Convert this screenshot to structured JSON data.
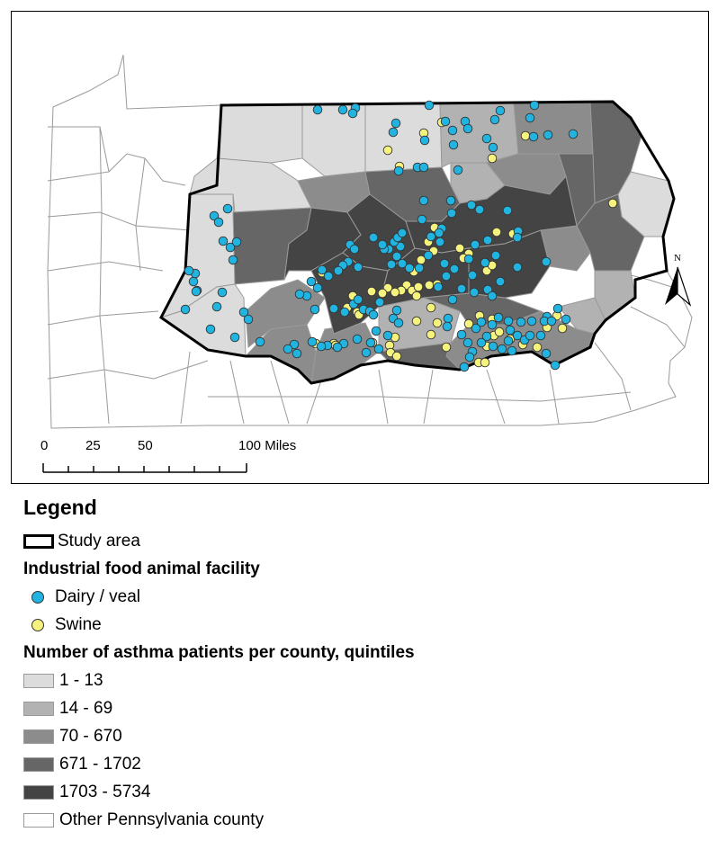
{
  "scale_bar": {
    "labels": [
      "0",
      "25",
      "50",
      "100 Miles"
    ],
    "unit": "Miles"
  },
  "north_arrow": {
    "label": "N"
  },
  "legend": {
    "title": "Legend",
    "study_area": "Study area",
    "facility_heading": "Industrial food animal facility",
    "facilities": [
      {
        "label": "Dairy / veal",
        "color": "#21b4e0"
      },
      {
        "label": "Swine",
        "color": "#f6f27e"
      }
    ],
    "asthma_heading": "Number of asthma patients per county, quintiles",
    "quintiles": [
      {
        "label": "1 - 13",
        "color": "#dcdcdc"
      },
      {
        "label": "14 - 69",
        "color": "#b2b2b2"
      },
      {
        "label": "70 - 670",
        "color": "#8c8c8c"
      },
      {
        "label": "671 - 1702",
        "color": "#666666"
      },
      {
        "label": "1703 - 5734",
        "color": "#444444"
      }
    ],
    "other": {
      "label": "Other Pennsylvania county",
      "color": "#ffffff"
    }
  },
  "colors": {
    "county_border": "#9a9a9a",
    "study_border": "#000000",
    "point_outline": "#333333"
  }
}
